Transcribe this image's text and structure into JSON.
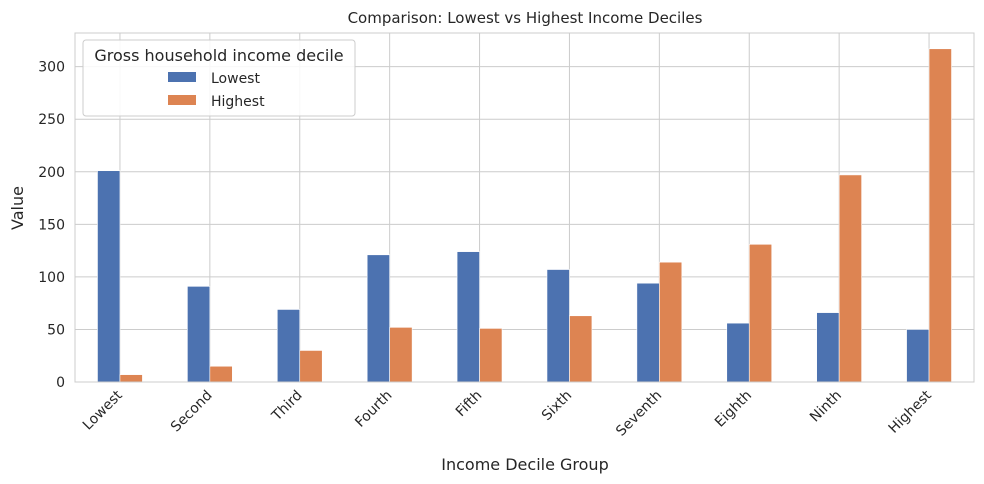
{
  "chart_data": {
    "type": "bar",
    "title": "Comparison: Lowest vs Highest Income Deciles",
    "xlabel": "Income Decile Group",
    "ylabel": "Value",
    "ylim": [
      0,
      332
    ],
    "yticks": [
      0,
      50,
      100,
      150,
      200,
      250,
      300
    ],
    "grid": true,
    "legend": {
      "title": "Gross household income decile",
      "placement": "top-left"
    },
    "categories": [
      "Lowest",
      "Second",
      "Third",
      "Fourth",
      "Fifth",
      "Sixth",
      "Seventh",
      "Eighth",
      "Ninth",
      "Highest"
    ],
    "series": [
      {
        "name": "Lowest",
        "color": "#4c72b0",
        "values": [
          201,
          91,
          69,
          121,
          124,
          107,
          94,
          56,
          66,
          50
        ]
      },
      {
        "name": "Highest",
        "color": "#dd8452",
        "values": [
          7,
          15,
          30,
          52,
          51,
          63,
          114,
          131,
          197,
          317
        ]
      }
    ]
  }
}
